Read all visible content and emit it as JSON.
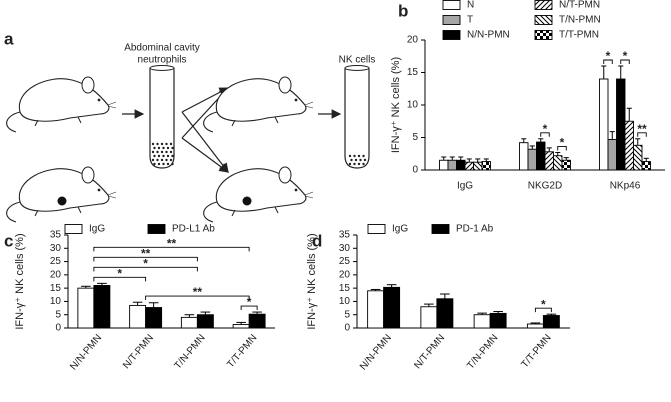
{
  "panel_labels": [
    "a",
    "b",
    "c",
    "d"
  ],
  "diagram": {
    "tube1_label": [
      "Abdominal cavity",
      "neutrophils"
    ],
    "tube2_label": "NK cells"
  },
  "chart_data": [
    {
      "type": "bar",
      "ylabel": "IFN-γ⁺ NK cells (%)",
      "categories": [
        "IgG",
        "NKG2D",
        "NKp46"
      ],
      "ylim": [
        0,
        20
      ],
      "yticks": [
        0,
        5,
        10,
        15,
        20
      ],
      "series": [
        {
          "name": "N",
          "color": "#ffffff",
          "hatch": "none",
          "values": [
            1.5,
            4.2,
            14
          ],
          "errors": [
            0.5,
            0.6,
            2
          ]
        },
        {
          "name": "T",
          "color": "#a6a6a6",
          "hatch": "none",
          "values": [
            1.5,
            3.2,
            4.7
          ],
          "errors": [
            0.5,
            0.5,
            1.2
          ]
        },
        {
          "name": "N/N-PMN",
          "color": "#000000",
          "hatch": "none",
          "values": [
            1.5,
            4.3,
            14
          ],
          "errors": [
            0.5,
            0.5,
            2
          ]
        },
        {
          "name": "N/T-PMN",
          "color": "#ffffff",
          "hatch": "diagonal-up",
          "values": [
            1.2,
            2.8,
            7.5
          ],
          "errors": [
            0.5,
            0.6,
            2
          ]
        },
        {
          "name": "T/N-PMN",
          "color": "#ffffff",
          "hatch": "diagonal-down",
          "values": [
            1.2,
            2.2,
            3.8
          ],
          "errors": [
            0.5,
            0.5,
            1
          ]
        },
        {
          "name": "T/T-PMN",
          "color": "#ffffff",
          "hatch": "checker",
          "values": [
            1.3,
            1.5,
            1.3
          ],
          "errors": [
            0.4,
            0.4,
            0.5
          ]
        }
      ],
      "significance": [
        {
          "label": "*",
          "from": [
            1,
            2
          ],
          "to": [
            1,
            3
          ]
        },
        {
          "label": "*",
          "from": [
            1,
            4
          ],
          "to": [
            1,
            5
          ]
        },
        {
          "label": "*",
          "from": [
            2,
            0
          ],
          "to": [
            2,
            1
          ]
        },
        {
          "label": "*",
          "from": [
            2,
            2
          ],
          "to": [
            2,
            3
          ]
        },
        {
          "label": "**",
          "from": [
            2,
            4
          ],
          "to": [
            2,
            5
          ]
        }
      ]
    },
    {
      "type": "bar",
      "ylabel": "IFN-γ⁺ NK cells (%)",
      "categories": [
        "N/N-PMN",
        "N/T-PMN",
        "T/N-PMN",
        "T/T-PMN"
      ],
      "ylim": [
        0,
        35
      ],
      "yticks": [
        0,
        5,
        10,
        15,
        20,
        25,
        30,
        35
      ],
      "series": [
        {
          "name": "IgG",
          "color": "#ffffff",
          "hatch": "none",
          "values": [
            15,
            8.5,
            4,
            1.3
          ],
          "errors": [
            0.7,
            1.2,
            1,
            0.8
          ]
        },
        {
          "name": "PD-L1 Ab",
          "color": "#000000",
          "hatch": "none",
          "values": [
            16,
            7.7,
            5,
            5.2
          ],
          "errors": [
            0.8,
            1.8,
            1,
            0.8
          ]
        }
      ],
      "significance": [
        {
          "label": "*",
          "from": [
            3,
            0
          ],
          "to": [
            3,
            1
          ]
        },
        {
          "label": "**",
          "from": [
            1
          ],
          "to": [
            3
          ]
        },
        {
          "label": "*",
          "from": [
            0
          ],
          "to": [
            1
          ]
        },
        {
          "label": "*",
          "from": [
            0
          ],
          "to": [
            2
          ]
        },
        {
          "label": "**",
          "from": [
            0
          ],
          "to": [
            2
          ]
        },
        {
          "label": "**",
          "from": [
            0
          ],
          "to": [
            3
          ]
        }
      ]
    },
    {
      "type": "bar",
      "ylabel": "IFN-γ⁺ NK cells (%)",
      "categories": [
        "N/N-PMN",
        "N/T-PMN",
        "T/N-PMN",
        "T/T-PMN"
      ],
      "ylim": [
        0,
        35
      ],
      "yticks": [
        0,
        5,
        10,
        15,
        20,
        25,
        30,
        35
      ],
      "series": [
        {
          "name": "IgG",
          "color": "#ffffff",
          "hatch": "none",
          "values": [
            14,
            8,
            5,
            1.5
          ],
          "errors": [
            0.5,
            1,
            0.6,
            0.4
          ]
        },
        {
          "name": "PD-1 Ab",
          "color": "#000000",
          "hatch": "none",
          "values": [
            15.3,
            11,
            5.5,
            4.7
          ],
          "errors": [
            1,
            1.8,
            0.7,
            0.5
          ]
        }
      ],
      "significance": [
        {
          "label": "*",
          "from": [
            3,
            0
          ],
          "to": [
            3,
            1
          ]
        }
      ]
    }
  ]
}
